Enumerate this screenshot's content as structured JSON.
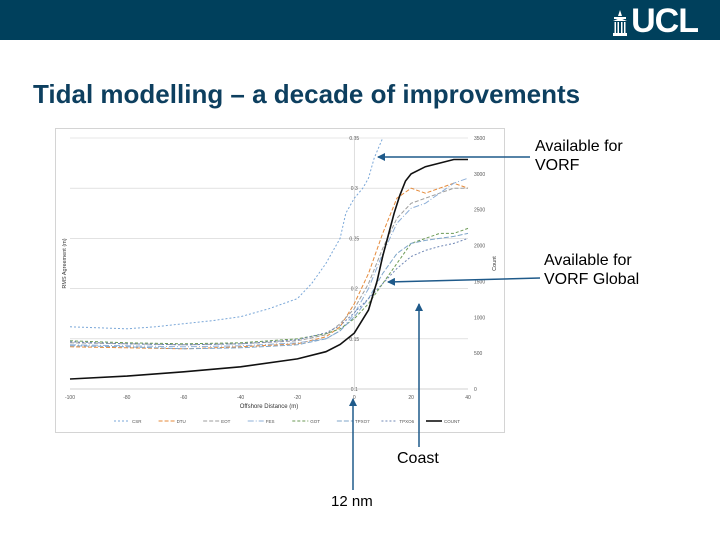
{
  "slide": {
    "title": "Tidal modelling – a decade of improvements",
    "logo_text": "UCL",
    "header_color": "#00405c",
    "title_color": "#0d3f5f",
    "logo_mark": "portico-icon"
  },
  "annotations": {
    "vorf_line1": "Available for",
    "vorf_line2": "VORF",
    "global_line1": "Available for",
    "global_line2": "VORF Global",
    "coast": "Coast",
    "nm": "12 nm",
    "arrow_color": "#1f5a8a"
  },
  "chart_data": {
    "type": "line",
    "title": "",
    "xlabel": "Offshore Distance (m)",
    "ylabel": "RMS Agreement (m)",
    "y2label": "Count",
    "xlim": [
      -100,
      40
    ],
    "ylim": [
      0.1,
      0.35
    ],
    "y2lim": [
      0,
      3500
    ],
    "grid": true,
    "legend_position": "bottom",
    "x_ticks": [
      "-100",
      "-80",
      "-60",
      "-40",
      "-20",
      "0",
      "20",
      "40"
    ],
    "y_ticks": [
      "0.1",
      "0.15",
      "0.2",
      "0.25",
      "0.3",
      "0.35"
    ],
    "y2_ticks": [
      "0",
      "500",
      "1000",
      "1500",
      "2000",
      "2500",
      "3000",
      "3500"
    ],
    "series": [
      {
        "name": "CSR",
        "color": "#7aa7d8",
        "dash": "2,2",
        "width": 1,
        "axis": "left",
        "x": [
          -100,
          -90,
          -80,
          -70,
          -60,
          -50,
          -40,
          -30,
          -20,
          -15,
          -10,
          -7,
          -5,
          -3,
          0,
          3,
          5,
          7,
          10
        ],
        "y": [
          0.162,
          0.161,
          0.16,
          0.162,
          0.165,
          0.168,
          0.172,
          0.18,
          0.19,
          0.205,
          0.225,
          0.24,
          0.25,
          0.275,
          0.29,
          0.3,
          0.31,
          0.33,
          0.35
        ]
      },
      {
        "name": "DTU",
        "color": "#e58a3a",
        "dash": "4,2",
        "width": 1,
        "axis": "left",
        "x": [
          -100,
          -80,
          -60,
          -40,
          -20,
          -10,
          -5,
          0,
          5,
          10,
          15,
          20,
          25,
          30,
          35,
          40
        ],
        "y": [
          0.142,
          0.141,
          0.14,
          0.142,
          0.145,
          0.152,
          0.162,
          0.185,
          0.215,
          0.255,
          0.29,
          0.3,
          0.295,
          0.3,
          0.305,
          0.3
        ]
      },
      {
        "name": "EOT",
        "color": "#9e9e9e",
        "dash": "4,2",
        "width": 1,
        "axis": "left",
        "x": [
          -100,
          -80,
          -60,
          -40,
          -20,
          -10,
          -5,
          0,
          5,
          10,
          15,
          20,
          25,
          30,
          35,
          40
        ],
        "y": [
          0.146,
          0.145,
          0.144,
          0.145,
          0.148,
          0.154,
          0.165,
          0.18,
          0.205,
          0.24,
          0.27,
          0.285,
          0.29,
          0.295,
          0.3,
          0.3
        ]
      },
      {
        "name": "FES",
        "color": "#8fb0d8",
        "dash": "6,2,1,2",
        "width": 1,
        "axis": "left",
        "x": [
          -100,
          -80,
          -60,
          -40,
          -20,
          -10,
          -5,
          0,
          5,
          10,
          15,
          20,
          25,
          30,
          35,
          40
        ],
        "y": [
          0.144,
          0.143,
          0.142,
          0.143,
          0.146,
          0.15,
          0.158,
          0.175,
          0.2,
          0.235,
          0.265,
          0.28,
          0.285,
          0.295,
          0.305,
          0.31
        ]
      },
      {
        "name": "GOT",
        "color": "#6b9a55",
        "dash": "3,2",
        "width": 1,
        "axis": "left",
        "x": [
          -100,
          -80,
          -60,
          -40,
          -20,
          -10,
          -5,
          0,
          5,
          10,
          15,
          20,
          25,
          30,
          35,
          40
        ],
        "y": [
          0.148,
          0.146,
          0.145,
          0.146,
          0.15,
          0.155,
          0.16,
          0.17,
          0.185,
          0.205,
          0.225,
          0.245,
          0.25,
          0.255,
          0.255,
          0.26
        ]
      },
      {
        "name": "TPXO7",
        "color": "#7fa6c9",
        "dash": "5,2",
        "width": 1,
        "axis": "left",
        "x": [
          -100,
          -80,
          -60,
          -40,
          -20,
          -10,
          -5,
          0,
          5,
          10,
          15,
          20,
          25,
          30,
          35,
          40
        ],
        "y": [
          0.143,
          0.142,
          0.14,
          0.141,
          0.144,
          0.15,
          0.158,
          0.172,
          0.19,
          0.215,
          0.235,
          0.245,
          0.248,
          0.25,
          0.252,
          0.255
        ]
      },
      {
        "name": "TPXO6",
        "color": "#6f87b5",
        "dash": "2,2",
        "width": 1,
        "axis": "left",
        "x": [
          -100,
          -80,
          -60,
          -40,
          -20,
          -10,
          -5,
          0,
          5,
          10,
          15,
          20,
          25,
          30,
          35,
          40
        ],
        "y": [
          0.147,
          0.145,
          0.144,
          0.145,
          0.149,
          0.156,
          0.163,
          0.176,
          0.19,
          0.205,
          0.22,
          0.232,
          0.238,
          0.242,
          0.245,
          0.25
        ]
      },
      {
        "name": "COUNT",
        "color": "#111111",
        "dash": "",
        "width": 1.6,
        "axis": "right",
        "x": [
          -100,
          -80,
          -60,
          -40,
          -20,
          -10,
          -5,
          0,
          5,
          8,
          10,
          12,
          14,
          16,
          18,
          20,
          25,
          30,
          35,
          40
        ],
        "y": [
          140,
          180,
          240,
          310,
          420,
          520,
          620,
          780,
          1100,
          1500,
          1850,
          2150,
          2450,
          2700,
          2900,
          3000,
          3100,
          3150,
          3200,
          3200
        ]
      }
    ]
  }
}
